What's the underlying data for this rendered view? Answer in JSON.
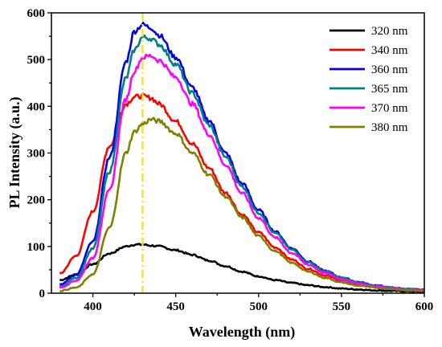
{
  "chart_data": {
    "type": "line",
    "xlabel": "Wavelength (nm)",
    "ylabel": "PL Intensity (a.u.)",
    "xlim": [
      375,
      600
    ],
    "ylim": [
      0,
      600
    ],
    "x_ticks": [
      400,
      450,
      500,
      550,
      600
    ],
    "y_ticks": [
      0,
      100,
      200,
      300,
      400,
      500,
      600
    ],
    "grid": false,
    "legend_position": "top-right",
    "reference_line": {
      "x": 430,
      "style": "dash-dot",
      "color": "#f0e020"
    },
    "x": [
      380,
      390,
      400,
      410,
      420,
      425,
      430,
      435,
      440,
      450,
      460,
      470,
      480,
      490,
      500,
      510,
      520,
      530,
      540,
      550,
      560,
      570,
      580,
      590,
      600
    ],
    "series": [
      {
        "name": "320 nm",
        "color": "#000000",
        "values": [
          28,
          40,
          62,
          85,
          100,
          104,
          104,
          102,
          100,
          92,
          82,
          70,
          58,
          46,
          36,
          28,
          22,
          17,
          13,
          10,
          8,
          6,
          5,
          4,
          3
        ]
      },
      {
        "name": "340 nm",
        "color": "#ff0000",
        "values": [
          42,
          80,
          175,
          315,
          405,
          420,
          422,
          418,
          405,
          368,
          320,
          268,
          215,
          168,
          130,
          98,
          72,
          52,
          38,
          27,
          20,
          15,
          11,
          8,
          6
        ]
      },
      {
        "name": "360 nm",
        "color": "#0000ee",
        "values": [
          18,
          40,
          110,
          290,
          495,
          560,
          575,
          568,
          552,
          505,
          440,
          370,
          300,
          235,
          178,
          132,
          96,
          68,
          48,
          34,
          24,
          17,
          12,
          9,
          7
        ]
      },
      {
        "name": "365 nm",
        "color": "#008080",
        "values": [
          14,
          33,
          95,
          260,
          460,
          520,
          548,
          545,
          532,
          490,
          428,
          360,
          292,
          228,
          172,
          128,
          93,
          66,
          47,
          33,
          23,
          16,
          12,
          9,
          7
        ]
      },
      {
        "name": "370 nm",
        "color": "#ff00ff",
        "values": [
          12,
          27,
          75,
          220,
          415,
          475,
          505,
          508,
          498,
          462,
          405,
          340,
          275,
          214,
          161,
          119,
          86,
          61,
          43,
          30,
          21,
          15,
          11,
          8,
          6
        ]
      },
      {
        "name": "380 nm",
        "color": "#808000",
        "values": [
          5,
          12,
          40,
          140,
          300,
          345,
          362,
          372,
          368,
          342,
          300,
          254,
          207,
          162,
          122,
          90,
          65,
          46,
          33,
          23,
          16,
          12,
          9,
          6,
          5
        ]
      }
    ]
  }
}
